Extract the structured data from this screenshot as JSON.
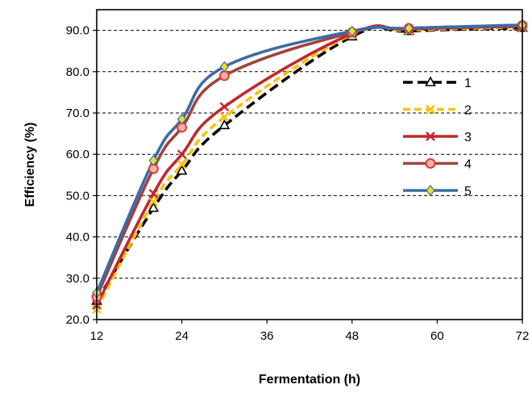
{
  "chart_data": {
    "type": "line",
    "title": "",
    "xlabel": "Fermentation (h)",
    "ylabel": "Efficiency (%)",
    "xlim": [
      12,
      72
    ],
    "ylim": [
      20,
      95
    ],
    "xticks": [
      "12",
      "24",
      "36",
      "48",
      "60",
      "72"
    ],
    "yticks": [
      "20.0",
      "30.0",
      "40.0",
      "50.0",
      "60.0",
      "70.0",
      "80.0",
      "90.0"
    ],
    "grid": "horizontal dashed",
    "legend_position": "right",
    "series": [
      {
        "name": "1",
        "color": "#000000",
        "marker": "triangle",
        "dash": "long-dash",
        "x": [
          12,
          20,
          24,
          30,
          48,
          56,
          72
        ],
        "y": [
          24.5,
          47.0,
          56.0,
          67.0,
          88.5,
          89.8,
          90.6
        ]
      },
      {
        "name": "2",
        "color": "#FFC000",
        "marker": "x",
        "dash": "dash",
        "x": [
          12,
          20,
          24,
          30,
          48,
          56,
          72
        ],
        "y": [
          22.5,
          48.5,
          57.5,
          69.0,
          89.0,
          90.0,
          90.8
        ]
      },
      {
        "name": "3",
        "color": "#C0282D",
        "marker": "x",
        "dash": "solid",
        "x": [
          12,
          20,
          24,
          30,
          48,
          56,
          72
        ],
        "y": [
          23.5,
          50.5,
          60.0,
          71.5,
          89.2,
          90.3,
          91.0
        ]
      },
      {
        "name": "4",
        "color": "#A0423C",
        "marker": "circle",
        "marker_color": "#E03A3A",
        "dash": "solid",
        "x": [
          12,
          20,
          24,
          30,
          48,
          56,
          72
        ],
        "y": [
          25.5,
          56.5,
          66.5,
          79.0,
          89.5,
          90.5,
          91.2
        ]
      },
      {
        "name": "5",
        "color": "#3C6BA8",
        "marker": "diamond",
        "marker_color": "#E8E020",
        "dash": "solid",
        "x": [
          12,
          20,
          24,
          30,
          48,
          56,
          72
        ],
        "y": [
          26.5,
          58.5,
          68.5,
          81.2,
          89.8,
          90.5,
          91.3
        ]
      }
    ]
  }
}
